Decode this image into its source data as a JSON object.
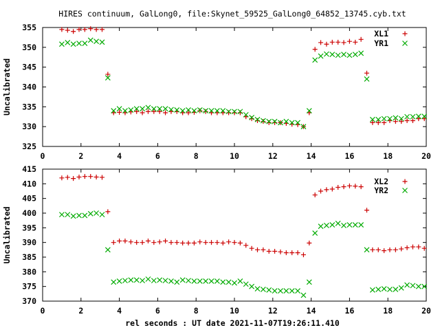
{
  "chart_data": [
    {
      "type": "scatter",
      "title": "HIRES continuum, GalLong0, file:Skynet_59525_GalLong0_64852_13745.cyb.txt",
      "xlabel": "",
      "ylabel": "Uncalibrated",
      "xlim": [
        0,
        20
      ],
      "ylim": [
        325,
        355
      ],
      "xticks": [
        0,
        2,
        4,
        6,
        8,
        10,
        12,
        14,
        16,
        18,
        20
      ],
      "yticks": [
        325,
        330,
        335,
        340,
        345,
        350,
        355
      ],
      "grid": false,
      "legend": "top-right",
      "x": [
        1.0,
        1.3,
        1.6,
        1.9,
        2.2,
        2.5,
        2.8,
        3.1,
        3.4,
        3.7,
        4.0,
        4.3,
        4.6,
        4.9,
        5.2,
        5.5,
        5.8,
        6.1,
        6.4,
        6.7,
        7.0,
        7.3,
        7.6,
        7.9,
        8.2,
        8.5,
        8.8,
        9.1,
        9.4,
        9.7,
        10.0,
        10.3,
        10.6,
        10.9,
        11.2,
        11.5,
        11.8,
        12.1,
        12.4,
        12.7,
        13.0,
        13.3,
        13.6,
        13.9,
        14.2,
        14.5,
        14.8,
        15.1,
        15.4,
        15.7,
        16.0,
        16.3,
        16.6,
        16.9,
        17.2,
        17.5,
        17.8,
        18.1,
        18.4,
        18.7,
        19.0,
        19.3,
        19.6,
        19.9
      ],
      "series": [
        {
          "name": "XL1",
          "color": "#cc0000",
          "marker": "plus",
          "values": [
            354.5,
            354.3,
            354.0,
            354.5,
            354.5,
            354.7,
            354.5,
            354.5,
            343.2,
            333.5,
            333.6,
            333.5,
            333.7,
            333.8,
            333.5,
            333.8,
            333.8,
            333.8,
            333.5,
            333.8,
            333.8,
            333.5,
            333.5,
            333.6,
            334.0,
            333.8,
            333.5,
            333.5,
            333.5,
            333.5,
            333.5,
            333.5,
            332.5,
            332.0,
            331.5,
            331.3,
            331.0,
            331.0,
            331.0,
            330.8,
            330.6,
            330.5,
            330.0,
            333.5,
            349.5,
            351.2,
            350.8,
            351.3,
            351.3,
            351.2,
            351.5,
            351.3,
            352.0,
            343.5,
            331.0,
            331.0,
            331.0,
            331.5,
            331.3,
            331.3,
            331.5,
            331.5,
            332.0,
            332.0
          ]
        },
        {
          "name": "YR1",
          "color": "#00aa00",
          "marker": "x",
          "values": [
            350.8,
            351.2,
            350.8,
            351.0,
            351.0,
            351.8,
            351.5,
            351.3,
            342.3,
            334.0,
            334.5,
            334.0,
            334.2,
            334.5,
            334.5,
            334.8,
            334.5,
            334.5,
            334.5,
            334.3,
            334.2,
            334.0,
            334.2,
            334.0,
            334.2,
            334.0,
            334.0,
            334.0,
            334.0,
            333.8,
            333.8,
            333.8,
            333.0,
            332.3,
            331.8,
            331.5,
            331.3,
            331.3,
            331.0,
            331.3,
            331.0,
            331.0,
            330.0,
            334.0,
            346.8,
            347.8,
            348.3,
            348.2,
            348.0,
            348.2,
            348.0,
            348.2,
            348.5,
            342.0,
            331.8,
            331.8,
            332.0,
            332.0,
            332.2,
            332.0,
            332.5,
            332.5,
            332.6,
            332.6
          ]
        }
      ]
    },
    {
      "type": "scatter",
      "title": "",
      "xlabel": "rel seconds : UT date 2021-11-07T19:26:11.410",
      "ylabel": "Uncalibrated",
      "xlim": [
        0,
        20
      ],
      "ylim": [
        370,
        415
      ],
      "xticks": [
        0,
        2,
        4,
        6,
        8,
        10,
        12,
        14,
        16,
        18,
        20
      ],
      "yticks": [
        370,
        375,
        380,
        385,
        390,
        395,
        400,
        405,
        410,
        415
      ],
      "grid": false,
      "legend": "top-right",
      "x": [
        1.0,
        1.3,
        1.6,
        1.9,
        2.2,
        2.5,
        2.8,
        3.1,
        3.4,
        3.7,
        4.0,
        4.3,
        4.6,
        4.9,
        5.2,
        5.5,
        5.8,
        6.1,
        6.4,
        6.7,
        7.0,
        7.3,
        7.6,
        7.9,
        8.2,
        8.5,
        8.8,
        9.1,
        9.4,
        9.7,
        10.0,
        10.3,
        10.6,
        10.9,
        11.2,
        11.5,
        11.8,
        12.1,
        12.4,
        12.7,
        13.0,
        13.3,
        13.6,
        13.9,
        14.2,
        14.5,
        14.8,
        15.1,
        15.4,
        15.7,
        16.0,
        16.3,
        16.6,
        16.9,
        17.2,
        17.5,
        17.8,
        18.1,
        18.4,
        18.7,
        19.0,
        19.3,
        19.6,
        19.9
      ],
      "series": [
        {
          "name": "XL2",
          "color": "#cc0000",
          "marker": "plus",
          "values": [
            412.0,
            412.2,
            411.8,
            412.3,
            412.5,
            412.5,
            412.3,
            412.2,
            400.5,
            390.0,
            390.5,
            390.5,
            390.2,
            390.0,
            390.0,
            390.5,
            390.0,
            390.2,
            390.5,
            390.0,
            390.0,
            389.8,
            389.8,
            389.8,
            390.2,
            390.0,
            390.0,
            390.0,
            389.8,
            390.2,
            390.0,
            389.8,
            389.0,
            388.0,
            387.5,
            387.5,
            387.0,
            387.0,
            386.8,
            386.5,
            386.5,
            386.5,
            385.8,
            389.8,
            406.2,
            407.5,
            408.0,
            408.2,
            408.8,
            409.0,
            409.3,
            409.2,
            409.0,
            401.0,
            387.5,
            387.5,
            387.2,
            387.5,
            387.5,
            387.8,
            388.2,
            388.5,
            388.5,
            388.0
          ]
        },
        {
          "name": "YR2",
          "color": "#00aa00",
          "marker": "x",
          "values": [
            399.5,
            399.5,
            399.0,
            399.2,
            399.2,
            399.8,
            400.0,
            399.5,
            387.5,
            376.5,
            376.8,
            377.0,
            377.2,
            377.2,
            377.0,
            377.5,
            377.0,
            377.2,
            377.0,
            376.8,
            376.5,
            377.2,
            377.0,
            376.8,
            376.8,
            376.8,
            376.8,
            376.8,
            376.5,
            376.5,
            376.2,
            376.8,
            375.8,
            375.0,
            374.2,
            374.0,
            373.8,
            373.5,
            373.5,
            373.5,
            373.5,
            373.5,
            372.0,
            376.5,
            393.2,
            395.5,
            395.8,
            396.0,
            396.5,
            395.8,
            396.0,
            396.0,
            396.0,
            387.5,
            373.8,
            374.0,
            374.2,
            374.0,
            374.0,
            374.5,
            375.5,
            375.3,
            375.0,
            375.0
          ]
        }
      ]
    }
  ]
}
